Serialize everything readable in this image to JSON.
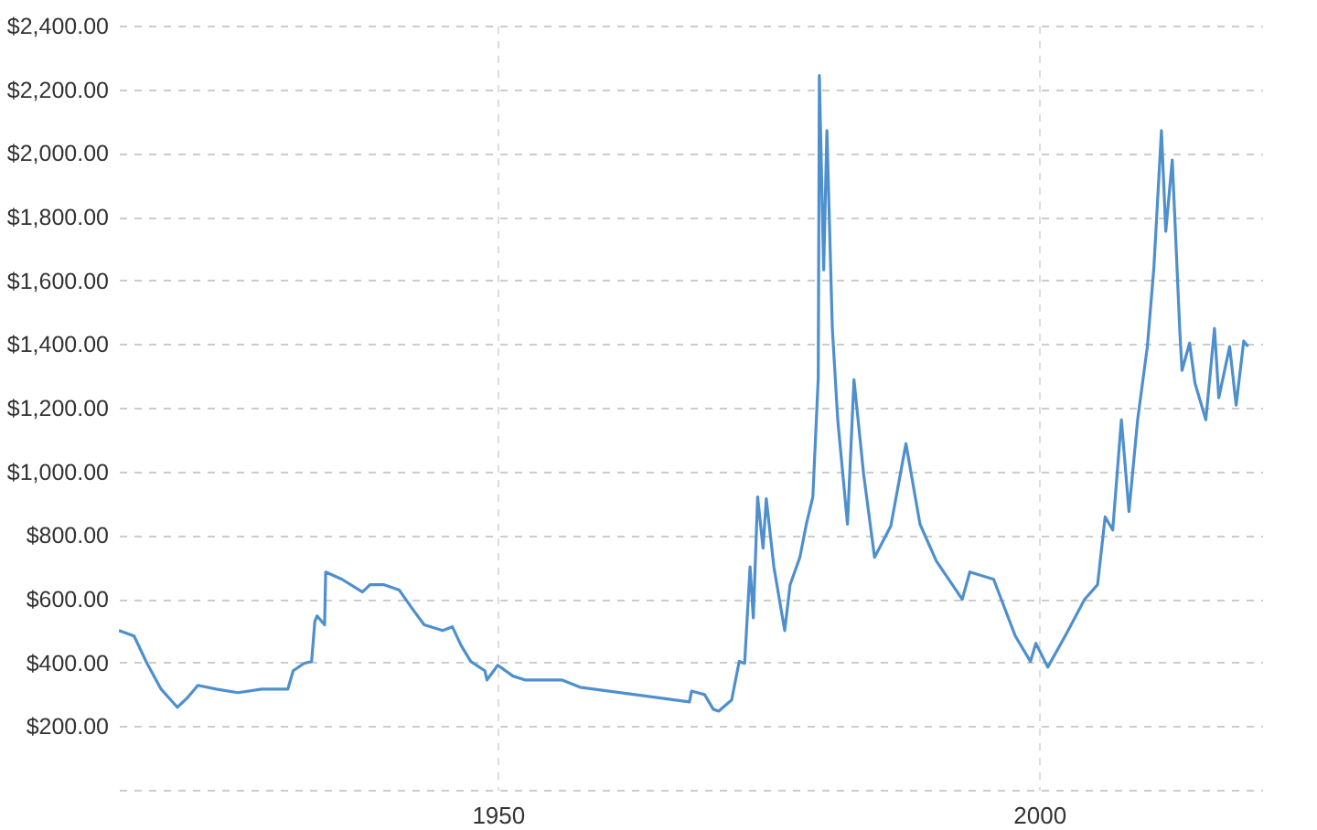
{
  "chart_data": {
    "type": "line",
    "x": [
      1915.0,
      1916.4,
      1917.6,
      1918.9,
      1920.4,
      1921.3,
      1922.3,
      1924.0,
      1926.0,
      1928.2,
      1929.9,
      1930.6,
      1931.1,
      1932.1,
      1932.8,
      1933.1,
      1933.3,
      1934.0,
      1934.1,
      1935.6,
      1937.5,
      1938.2,
      1939.5,
      1940.9,
      1942.1,
      1943.2,
      1944.9,
      1945.8,
      1946.6,
      1947.5,
      1948.8,
      1949.0,
      1950.0,
      1951.4,
      1952.5,
      1955.9,
      1957.6,
      1967.7,
      1967.9,
      1969.1,
      1969.9,
      1970.4,
      1971.6,
      1972.3,
      1972.8,
      1973.3,
      1973.6,
      1974.0,
      1974.5,
      1974.8,
      1975.5,
      1976.5,
      1977.0,
      1977.9,
      1978.5,
      1979.1,
      1979.6,
      1979.7,
      1980.1,
      1980.4,
      1980.9,
      1981.4,
      1982.3,
      1982.9,
      1983.8,
      1984.8,
      1986.3,
      1987.7,
      1989.0,
      1990.5,
      1992.9,
      1993.6,
      1995.8,
      1997.8,
      1999.2,
      1999.7,
      2000.8,
      2002.5,
      2004.2,
      2005.4,
      2006.1,
      2006.8,
      2007.6,
      2008.3,
      2009.1,
      2010.0,
      2010.6,
      2011.3,
      2011.7,
      2012.3,
      2013.0,
      2013.2,
      2013.9,
      2014.4,
      2015.4,
      2016.2,
      2016.6,
      2017.6,
      2018.2,
      2018.9,
      2019.3
    ],
    "series": [
      {
        "color": "#4e8fcd",
        "values": [
          500,
          483,
          397,
          316,
          259,
          288,
          328,
          316,
          305,
          316,
          316,
          316,
          374,
          397,
          403,
          529,
          546,
          518,
          684,
          661,
          621,
          644,
          644,
          627,
          569,
          518,
          500,
          512,
          454,
          403,
          374,
          345,
          391,
          357,
          345,
          345,
          322,
          276,
          310,
          299,
          253,
          247,
          282,
          403,
          397,
          700,
          540,
          920,
          759,
          914,
          700,
          500,
          644,
          730,
          834,
          920,
          1294,
          2243,
          1633,
          2070,
          1449,
          1162,
          834,
          1288,
          989,
          730,
          828,
          1087,
          834,
          719,
          598,
          684,
          661,
          483,
          403,
          460,
          385,
          489,
          598,
          644,
          857,
          816,
          1162,
          874,
          1162,
          1392,
          1639,
          2070,
          1754,
          1978,
          1438,
          1317,
          1403,
          1277,
          1162,
          1449,
          1231,
          1392,
          1208,
          1409,
          1392
        ]
      }
    ],
    "xlim": [
      1915,
      2020.6
    ],
    "xticks": [
      1950,
      2000
    ],
    "ylim": [
      0,
      2400
    ],
    "yticks": [
      {
        "value": 0,
        "label": null
      },
      {
        "value": 200,
        "label": "$200.00"
      },
      {
        "value": 400,
        "label": "$400.00"
      },
      {
        "value": 600,
        "label": "$600.00"
      },
      {
        "value": 800,
        "label": "$800.00"
      },
      {
        "value": 1000,
        "label": "$1,000.00"
      },
      {
        "value": 1200,
        "label": "$1,200.00"
      },
      {
        "value": 1400,
        "label": "$1,400.00"
      },
      {
        "value": 1600,
        "label": "$1,600.00"
      },
      {
        "value": 1800,
        "label": "$1,800.00"
      },
      {
        "value": 2000,
        "label": "$2,000.00"
      },
      {
        "value": 2200,
        "label": "$2,200.00"
      },
      {
        "value": 2400,
        "label": "$2,400.00"
      }
    ],
    "grid": true
  }
}
